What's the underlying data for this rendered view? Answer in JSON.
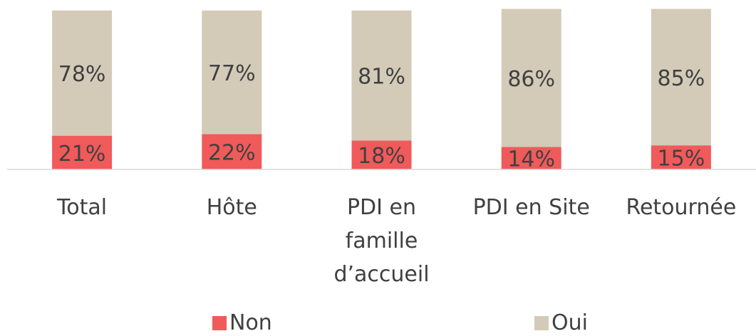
{
  "chart_data": {
    "type": "stacked_bar",
    "categories": [
      "Total",
      "Hôte",
      "PDI en famille d’accueil",
      "PDI en Site",
      "Retournée"
    ],
    "ylim": [
      0,
      100
    ],
    "series": [
      {
        "name": "Non",
        "color": "#f05a5a",
        "values": [
          21,
          22,
          18,
          14,
          15
        ],
        "value_labels": [
          "21%",
          "22%",
          "18%",
          "14%",
          "15%"
        ]
      },
      {
        "name": "Oui",
        "color": "#d3cbb8",
        "values": [
          78,
          77,
          81,
          86,
          85
        ],
        "value_labels": [
          "78%",
          "77%",
          "81%",
          "86%",
          "85%"
        ]
      }
    ]
  }
}
